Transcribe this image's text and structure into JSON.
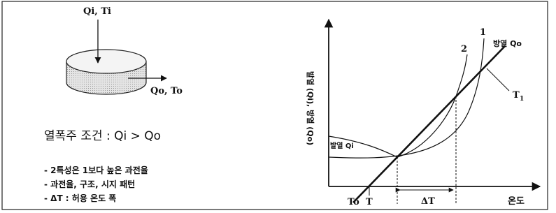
{
  "left": {
    "input_label": "Qi, Ti",
    "output_label": "Qo, To",
    "condition": "열폭주 조건 : Qi > Qo",
    "notes": [
      "- 2특성은 1보다 높은 과전율",
      "- 과전율, 구조, 시지 패턴",
      "- ΔT : 허용 온도 폭"
    ]
  },
  "graph": {
    "y_axis_label": "발열 (Qi), 방열 (Qo)",
    "x_axis_label": "온도",
    "line_label": "방열 Qo",
    "curve_label": "발열 Qi",
    "curve_1": "1",
    "curve_2": "2",
    "tangent_label": "T",
    "tangent_sub": "1",
    "to_label": "To",
    "t_label": "T",
    "delta_label": "ΔT"
  }
}
